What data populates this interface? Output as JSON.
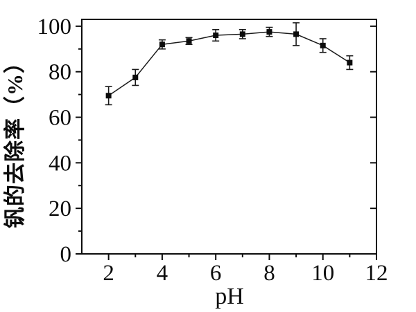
{
  "figure": {
    "background_color": "#ffffff",
    "ink_color": "#0c0c0c"
  },
  "chart_data": {
    "type": "line",
    "x": [
      2,
      3,
      4,
      5,
      6,
      7,
      8,
      9,
      10,
      11
    ],
    "series": [
      {
        "name": "钒的去除率",
        "values": [
          69.5,
          77.5,
          92,
          93.5,
          96,
          96.5,
          97.5,
          96.5,
          91.5,
          84
        ],
        "errors": [
          4,
          3.5,
          2,
          1.5,
          2.5,
          2,
          2,
          5,
          3,
          3
        ]
      }
    ],
    "title": "",
    "xlabel": "pH",
    "ylabel": "钒的去除率（%）",
    "xlim": [
      1,
      12
    ],
    "ylim": [
      0,
      103
    ],
    "x_major_ticks": [
      2,
      4,
      6,
      8,
      10,
      12
    ],
    "x_minor_ticks": [
      3,
      5,
      7,
      9,
      11
    ],
    "y_major_ticks": [
      0,
      20,
      40,
      60,
      80,
      100
    ],
    "y_minor_ticks": [
      10,
      30,
      50,
      70,
      90
    ],
    "grid": false,
    "legend_position": "none",
    "marker": "filled-square",
    "marker_color": "#0c0c0c",
    "line_color": "#1a1a1a",
    "error_bar_color": "#1a1a1a"
  }
}
